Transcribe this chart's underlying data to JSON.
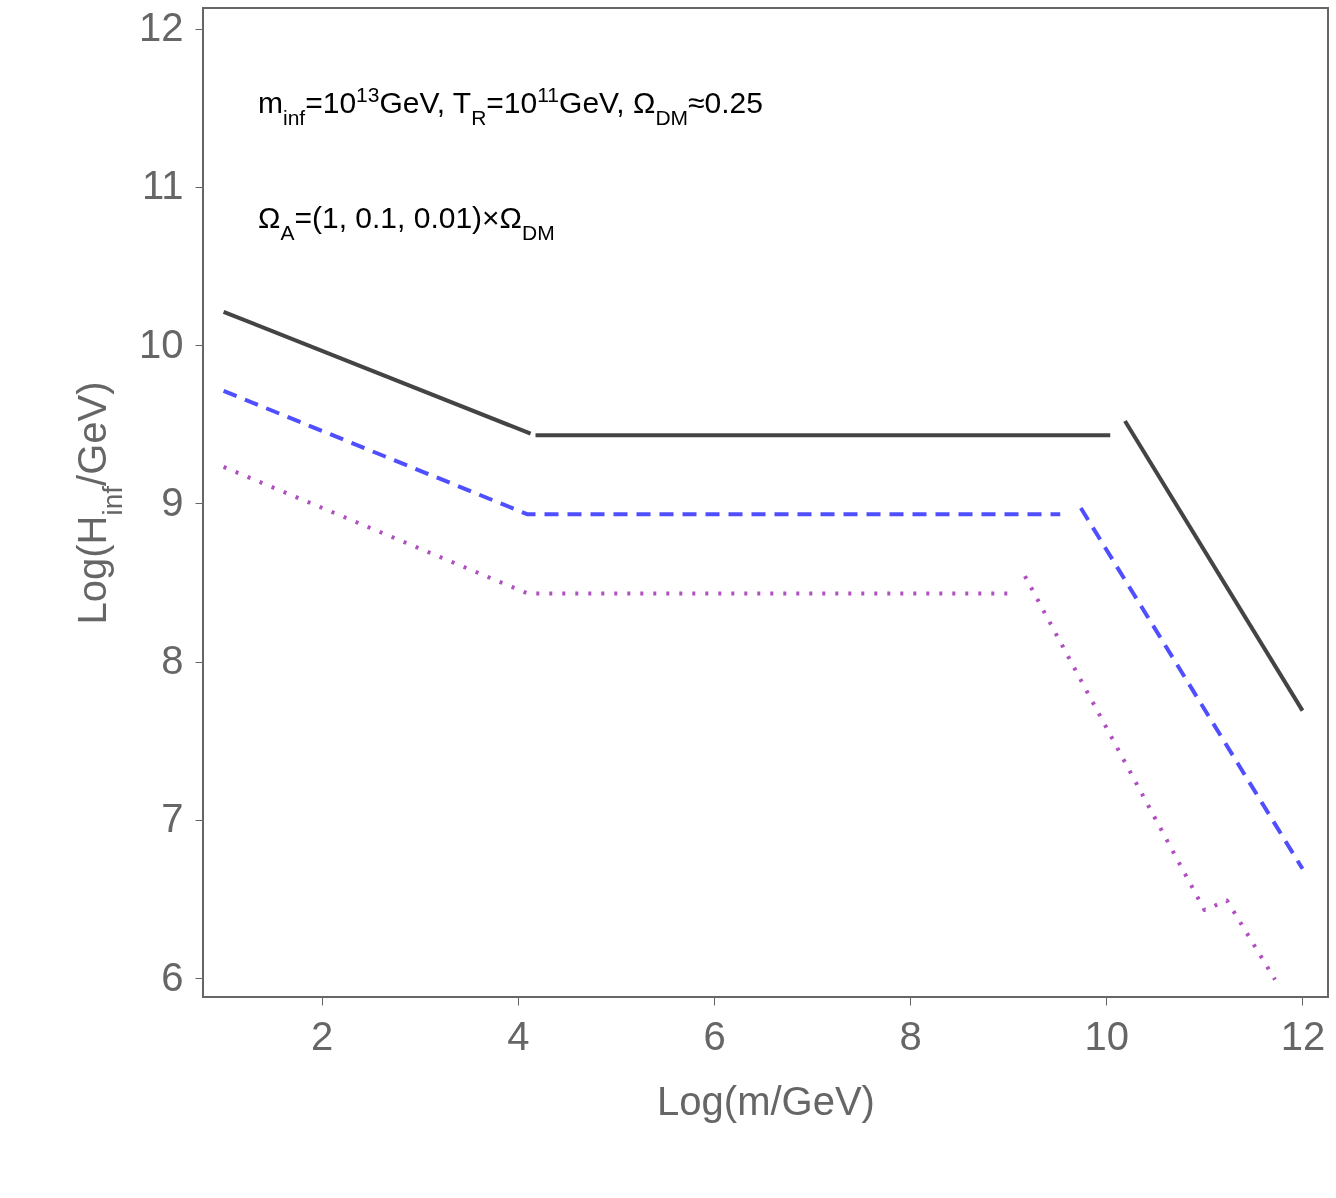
{
  "chart_data": {
    "type": "line",
    "xlabel": "Log(m/GeV)",
    "ylabel": "Log(H$_{inf}$/GeV)",
    "annotations": [
      "m$_{inf}$=10$^{13}$GeV, T$_{R}$=10$^{11}$GeV, Ω$_{DM}$≈0.25",
      "Ω$_{A}$=(1, 0.1, 0.01)×Ω$_{DM}$"
    ],
    "xlim": [
      0.79,
      12.26
    ],
    "ylim": [
      5.88,
      12.13
    ],
    "xticks": [
      2,
      4,
      6,
      8,
      10,
      12
    ],
    "yticks": [
      6,
      7,
      8,
      9,
      10,
      11,
      12
    ],
    "grid": false,
    "series": [
      {
        "color": "#444444",
        "line_style": "solid",
        "x": [
          1,
          4.13
        ],
        "values": [
          10.21,
          9.44
        ]
      },
      {
        "color": "#444444",
        "line_style": "solid",
        "x": [
          4.18,
          10.04
        ],
        "values": [
          9.43,
          9.43
        ]
      },
      {
        "color": "#444444",
        "line_style": "solid",
        "x": [
          10.19,
          12
        ],
        "values": [
          9.52,
          7.69
        ]
      },
      {
        "color": "#4f4fff",
        "line_style": "dashed",
        "x": [
          1,
          4.1,
          9.53
        ],
        "values": [
          9.71,
          8.93,
          8.93
        ]
      },
      {
        "color": "#4f4fff",
        "line_style": "dashed",
        "x": [
          9.74,
          12
        ],
        "values": [
          8.97,
          6.69
        ]
      },
      {
        "color": "#b04fc0",
        "line_style": "dotted",
        "x": [
          1,
          4.1,
          9.02
        ],
        "values": [
          9.23,
          8.43,
          8.43
        ]
      },
      {
        "color": "#b04fc0",
        "line_style": "dotted",
        "x": [
          9.17,
          11.0,
          11.23,
          11.72
        ],
        "values": [
          8.54,
          6.43,
          6.49,
          5.99
        ]
      }
    ]
  }
}
